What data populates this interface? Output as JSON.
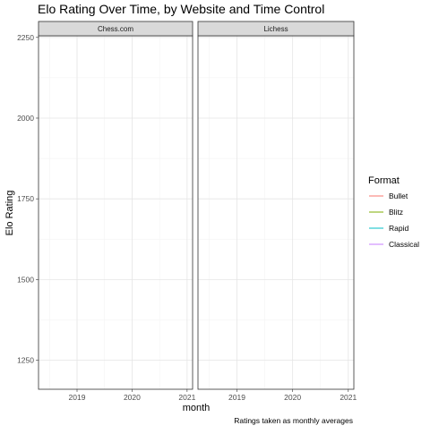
{
  "chart_data": {
    "type": "line",
    "title": "Elo Rating Over Time, by Website and Time Control",
    "xlabel": "month",
    "ylabel": "Elo Rating",
    "caption": "Ratings taken as monthly averages",
    "facets": [
      "Chess.com",
      "Lichess"
    ],
    "x_ticks": [
      "2019",
      "2020",
      "2021"
    ],
    "x_range": [
      2018.3,
      2021.1
    ],
    "y_ticks": [
      1250,
      1500,
      1750,
      2000,
      2250
    ],
    "ylim": [
      1160,
      2255
    ],
    "grid": true,
    "legend": {
      "title": "Format",
      "placement": "right",
      "entries": [
        {
          "label": "Bullet",
          "color": "#F8766D"
        },
        {
          "label": "Blitz",
          "color": "#7CAE00"
        },
        {
          "label": "Rapid",
          "color": "#00BFC4"
        },
        {
          "label": "Classical",
          "color": "#C77CFF"
        }
      ]
    },
    "series": []
  }
}
